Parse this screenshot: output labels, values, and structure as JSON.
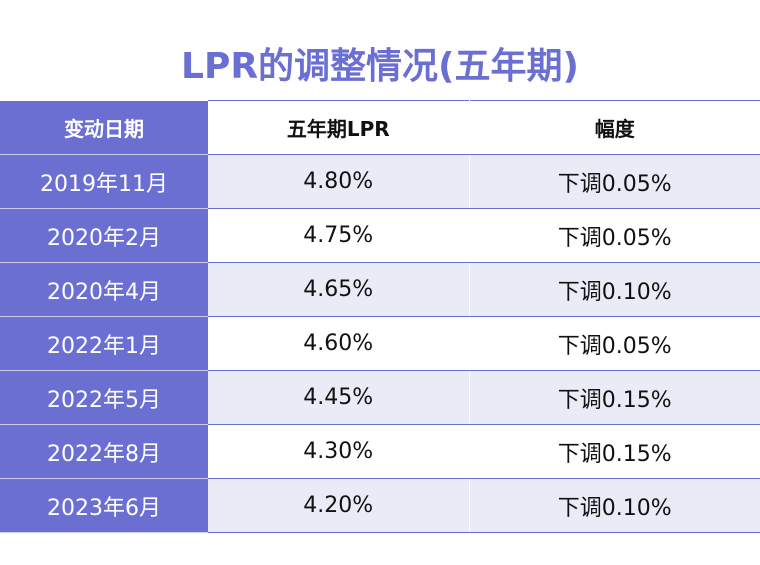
{
  "title": "LPR的调整情况(五年期)",
  "headers": [
    "变动日期",
    "五年期LPR",
    "幅度"
  ],
  "rows": [
    {
      "date": "2019年11月",
      "rate": "4.80%",
      "change": "下调0.05%"
    },
    {
      "date": "2020年2月",
      "rate": "4.75%",
      "change": "下调0.05%"
    },
    {
      "date": "2020年4月",
      "rate": "4.65%",
      "change": "下调0.10%"
    },
    {
      "date": "2022年1月",
      "rate": "4.60%",
      "change": "下调0.05%"
    },
    {
      "date": "2022年5月",
      "rate": "4.45%",
      "change": "下调0.15%"
    },
    {
      "date": "2022年8月",
      "rate": "4.30%",
      "change": "下调0.15%"
    },
    {
      "date": "2023年6月",
      "rate": "4.20%",
      "change": "下调0.10%"
    }
  ],
  "colors": {
    "accent": "#6b6fd2",
    "row_tint": "#e9ebf6"
  }
}
